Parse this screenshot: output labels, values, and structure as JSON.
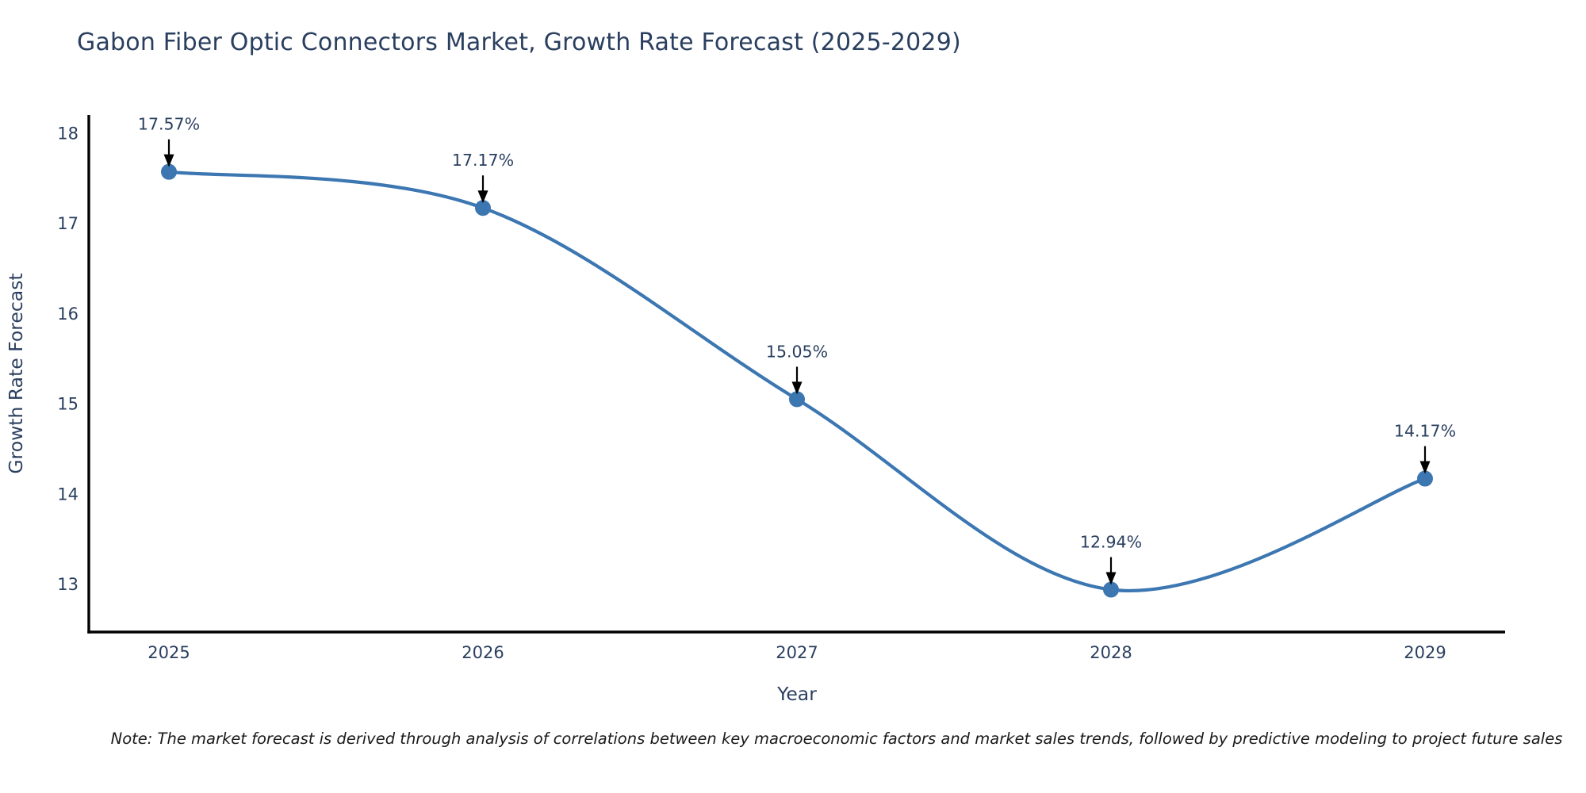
{
  "chart_data": {
    "type": "line",
    "title": "Gabon Fiber Optic Connectors Market, Growth Rate Forecast (2025-2029)",
    "xlabel": "Year",
    "ylabel": "Growth Rate Forecast",
    "x": [
      2025,
      2026,
      2027,
      2028,
      2029
    ],
    "values": [
      17.57,
      17.17,
      15.05,
      12.94,
      14.17
    ],
    "point_labels": [
      "17.57%",
      "17.17%",
      "15.05%",
      "12.94%",
      "14.17%"
    ],
    "yticks": [
      13,
      14,
      15,
      16,
      17,
      18
    ],
    "ylim": [
      12.47,
      18.2
    ],
    "grid": false,
    "legend": "none",
    "line_color": "#3c77b2",
    "marker_color": "#3c77b2",
    "axis_color": "#000000",
    "annotation_arrow_color": "#000000",
    "text_color": "#2a3f5f",
    "note": "Note: The market forecast is derived through analysis of correlations between key macroeconomic factors and market sales trends, followed by predictive modeling to project future sales"
  }
}
